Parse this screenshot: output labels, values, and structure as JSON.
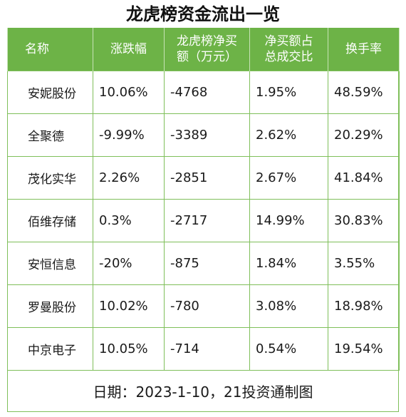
{
  "title": "龙虎榜资金流出一览",
  "table": {
    "headers": {
      "name": "名称",
      "change": "涨跌幅",
      "net_buy_line1": "龙虎榜净买",
      "net_buy_line2": "额（万元）",
      "ratio_line1": "净买额占",
      "ratio_line2": "总成交比",
      "turnover": "换手率"
    },
    "rows": [
      {
        "name": "安妮股份",
        "change": "10.06%",
        "net_buy": "-4768",
        "ratio": "1.95%",
        "turnover": "48.59%"
      },
      {
        "name": "全聚德",
        "change": "-9.99%",
        "net_buy": "-3389",
        "ratio": "2.62%",
        "turnover": "20.29%"
      },
      {
        "name": "茂化实华",
        "change": "2.26%",
        "net_buy": "-2851",
        "ratio": "2.67%",
        "turnover": "41.84%"
      },
      {
        "name": "佰维存储",
        "change": "0.3%",
        "net_buy": "-2717",
        "ratio": "14.99%",
        "turnover": "30.83%"
      },
      {
        "name": "安恒信息",
        "change": "-20%",
        "net_buy": "-875",
        "ratio": "1.84%",
        "turnover": "3.55%"
      },
      {
        "name": "罗曼股份",
        "change": "10.02%",
        "net_buy": "-780",
        "ratio": "3.08%",
        "turnover": "18.98%"
      },
      {
        "name": "中京电子",
        "change": "10.05%",
        "net_buy": "-714",
        "ratio": "0.54%",
        "turnover": "19.54%"
      }
    ]
  },
  "footer": "日期：2023-1-10，21投资通制图",
  "colors": {
    "header_bg": "#6db347",
    "border": "#7fbf5a"
  }
}
